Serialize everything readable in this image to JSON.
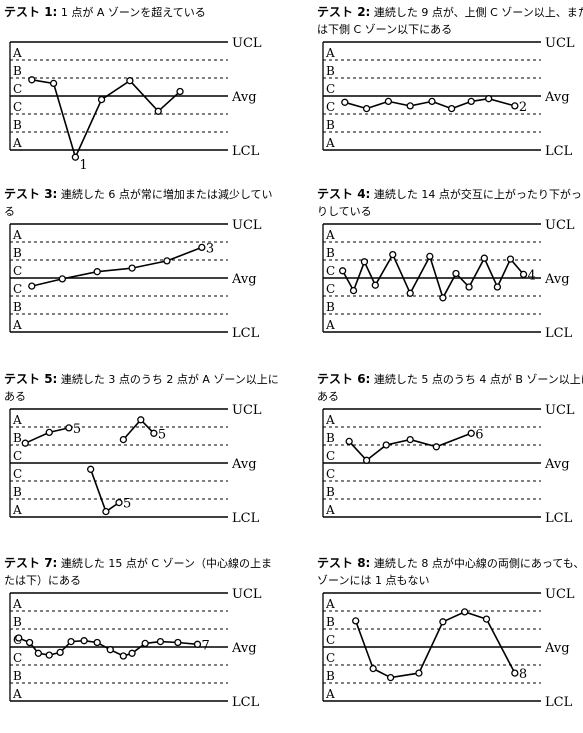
{
  "line_labels": {
    "ucl": "UCL",
    "avg": "Avg",
    "lcl": "LCL"
  },
  "zones": [
    "A",
    "B",
    "C",
    "C",
    "B",
    "A"
  ],
  "panels": [
    {
      "prefix": "テスト",
      "num": "1:",
      "desc": "1 点が A ゾーンを超えている",
      "series": [
        {
          "points": [
            [
              0.1,
              0.9
            ],
            [
              0.2,
              0.7
            ],
            [
              0.3,
              -3.4
            ],
            [
              0.42,
              -0.2
            ],
            [
              0.55,
              0.85
            ],
            [
              0.68,
              -0.85
            ],
            [
              0.78,
              0.25
            ]
          ]
        }
      ],
      "callouts": [
        {
          "text": "1",
          "at": 2
        }
      ]
    },
    {
      "prefix": "テスト",
      "num": "2:",
      "desc": "連続した 9 点が、上側 C ゾーン以上、または下側 C ゾーン以下にある",
      "series": [
        {
          "points": [
            [
              0.1,
              -0.35
            ],
            [
              0.2,
              -0.7
            ],
            [
              0.3,
              -0.3
            ],
            [
              0.4,
              -0.55
            ],
            [
              0.5,
              -0.3
            ],
            [
              0.59,
              -0.7
            ],
            [
              0.68,
              -0.3
            ],
            [
              0.76,
              -0.15
            ],
            [
              0.88,
              -0.55
            ]
          ]
        }
      ],
      "callouts": [
        {
          "text": "2",
          "at": 8
        }
      ]
    },
    {
      "prefix": "テスト",
      "num": "3:",
      "desc": "連続した 6 点が常に増加または減少している",
      "series": [
        {
          "points": [
            [
              0.1,
              -0.45
            ],
            [
              0.24,
              -0.05
            ],
            [
              0.4,
              0.35
            ],
            [
              0.56,
              0.55
            ],
            [
              0.72,
              0.95
            ],
            [
              0.88,
              1.7
            ]
          ]
        }
      ],
      "callouts": [
        {
          "text": "3",
          "at": 5
        }
      ]
    },
    {
      "prefix": "テスト",
      "num": "4:",
      "desc": "連続した 14 点が交互に上がったり下がったりしている",
      "series": [
        {
          "points": [
            [
              0.09,
              0.4
            ],
            [
              0.14,
              -0.7
            ],
            [
              0.19,
              0.9
            ],
            [
              0.24,
              -0.4
            ],
            [
              0.32,
              1.3
            ],
            [
              0.4,
              -0.85
            ],
            [
              0.49,
              1.2
            ],
            [
              0.55,
              -1.1
            ],
            [
              0.61,
              0.25
            ],
            [
              0.67,
              -0.5
            ],
            [
              0.74,
              1.1
            ],
            [
              0.8,
              -0.5
            ],
            [
              0.86,
              1.05
            ],
            [
              0.92,
              0.2
            ]
          ]
        }
      ],
      "callouts": [
        {
          "text": "4",
          "at": 13
        }
      ]
    },
    {
      "prefix": "テスト",
      "num": "5:",
      "desc": "連続した 3 点のうち 2 点が A ゾーン以上にある",
      "series": [
        {
          "points": [
            [
              0.07,
              1.1
            ],
            [
              0.18,
              1.7
            ],
            [
              0.27,
              1.95
            ]
          ]
        },
        {
          "points": [
            [
              0.52,
              1.3
            ],
            [
              0.6,
              2.4
            ],
            [
              0.66,
              1.65
            ]
          ]
        },
        {
          "points": [
            [
              0.37,
              -0.35
            ],
            [
              0.44,
              -2.7
            ],
            [
              0.5,
              -2.2
            ]
          ]
        }
      ],
      "callouts": [
        {
          "text": "5",
          "series": 0,
          "at": 2
        },
        {
          "text": "5",
          "series": 1,
          "at": 2
        },
        {
          "text": "5",
          "series": 2,
          "at": 2
        }
      ]
    },
    {
      "prefix": "テスト",
      "num": "6:",
      "desc": "連続した 5 点のうち 4 点が B ゾーン以上にある",
      "series": [
        {
          "points": [
            [
              0.12,
              1.2
            ],
            [
              0.2,
              0.15
            ],
            [
              0.29,
              1.0
            ],
            [
              0.4,
              1.3
            ],
            [
              0.52,
              0.9
            ],
            [
              0.68,
              1.65
            ]
          ]
        }
      ],
      "callouts": [
        {
          "text": "6",
          "at": 5
        }
      ]
    },
    {
      "prefix": "テスト",
      "num": "7:",
      "desc": "連続した 15 点が C ゾーン（中心線の上または下）にある",
      "series": [
        {
          "points": [
            [
              0.04,
              0.5
            ],
            [
              0.09,
              0.25
            ],
            [
              0.13,
              -0.35
            ],
            [
              0.18,
              -0.45
            ],
            [
              0.23,
              -0.3
            ],
            [
              0.28,
              0.3
            ],
            [
              0.34,
              0.35
            ],
            [
              0.4,
              0.25
            ],
            [
              0.46,
              -0.15
            ],
            [
              0.52,
              -0.5
            ],
            [
              0.56,
              -0.35
            ],
            [
              0.62,
              0.2
            ],
            [
              0.69,
              0.3
            ],
            [
              0.77,
              0.25
            ],
            [
              0.86,
              0.15
            ]
          ]
        }
      ],
      "callouts": [
        {
          "text": "7",
          "at": 14
        }
      ]
    },
    {
      "prefix": "テスト",
      "num": "8:",
      "desc": "連続した 8 点が中心線の両側にあっても、C ゾーンには 1 点もない",
      "series": [
        {
          "points": [
            [
              0.15,
              1.45
            ],
            [
              0.23,
              -1.2
            ],
            [
              0.31,
              -1.7
            ],
            [
              0.44,
              -1.45
            ],
            [
              0.55,
              1.4
            ],
            [
              0.65,
              1.95
            ],
            [
              0.75,
              1.55
            ],
            [
              0.88,
              -1.45
            ]
          ]
        }
      ],
      "callouts": [
        {
          "text": "8",
          "at": 7
        }
      ]
    }
  ]
}
